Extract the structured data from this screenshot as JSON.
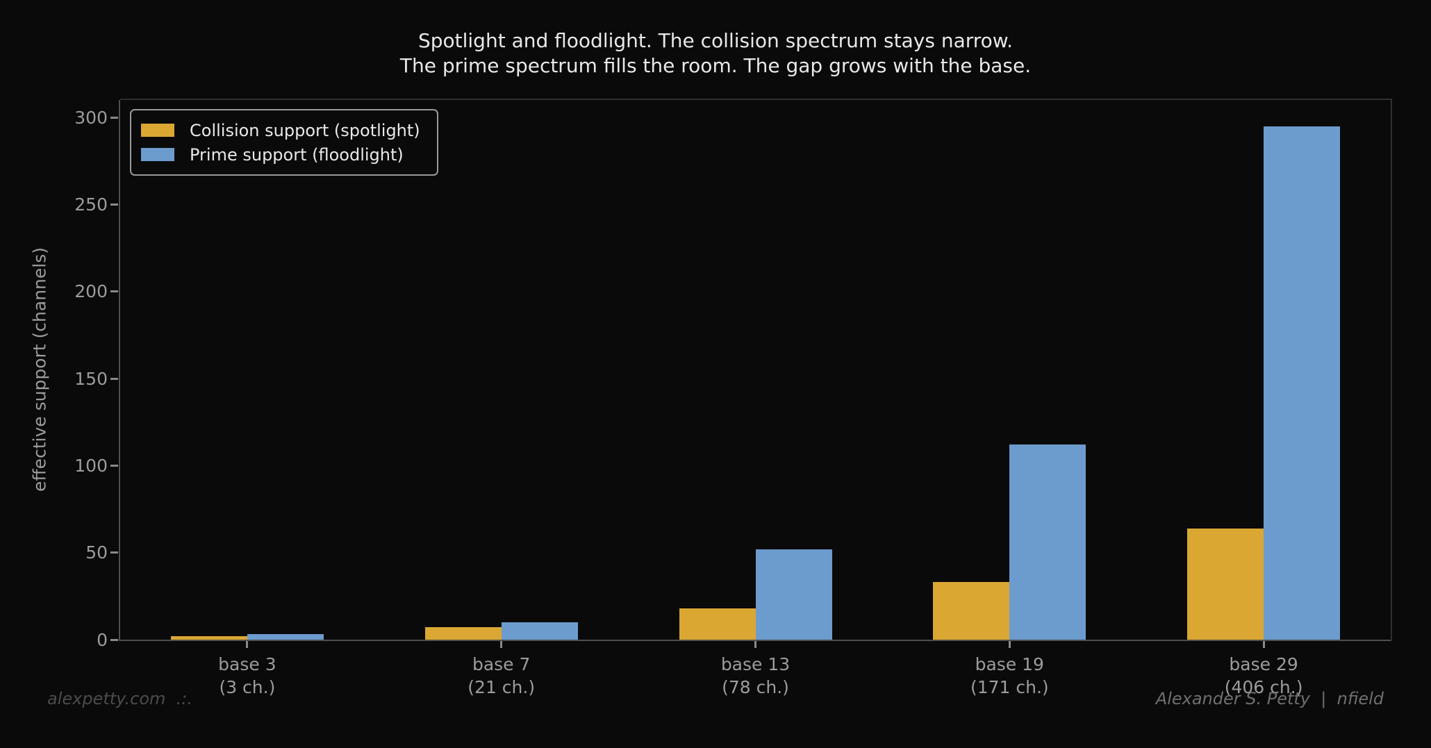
{
  "chart_data": {
    "type": "bar",
    "title_lines": [
      "Spotlight and floodlight. The collision spectrum stays narrow.",
      "The prime spectrum fills the room. The gap grows with the base."
    ],
    "ylabel": "effective support (channels)",
    "xlabel": "",
    "categories": [
      "base 3",
      "base 7",
      "base 13",
      "base 19",
      "base 29"
    ],
    "category_sublabels": [
      "(3 ch.)",
      "(21 ch.)",
      "(78 ch.)",
      "(171 ch.)",
      "(406 ch.)"
    ],
    "series": [
      {
        "name": "Collision support (spotlight)",
        "color": "#dba733",
        "values": [
          2,
          7,
          18,
          33,
          64
        ]
      },
      {
        "name": "Prime support (floodlight)",
        "color": "#6c9cce",
        "values": [
          3,
          10,
          52,
          112,
          295
        ]
      }
    ],
    "yticks": [
      0,
      50,
      100,
      150,
      200,
      250,
      300
    ],
    "ylim": [
      0,
      310
    ],
    "grid": false,
    "legend_position": "upper left",
    "background_color": "#0a0a0b"
  },
  "footer": {
    "left": "alexpetty.com  .:.",
    "right": "Alexander S. Petty  |  nfield"
  }
}
